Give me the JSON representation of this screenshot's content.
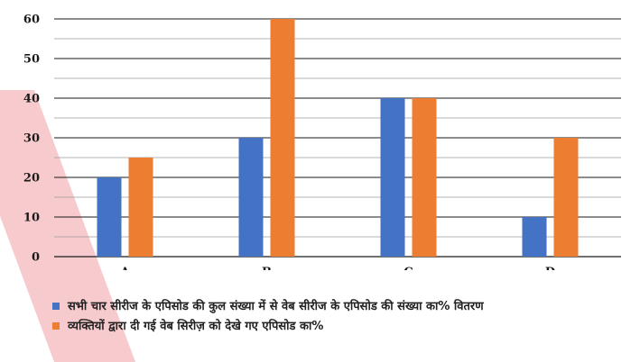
{
  "chart_data": {
    "type": "bar",
    "categories": [
      "A",
      "B",
      "C",
      "D"
    ],
    "series": [
      {
        "name": "सभी चार सीरीज के एपिसोड की कुल संख्या में से वेब सीरीज के एपिसोड की संख्या का% वितरण",
        "color": "#4472C4",
        "values": [
          20,
          30,
          40,
          10
        ]
      },
      {
        "name": "व्यक्तियों द्वारा दी गई वेब सिरीज़ को देखे गए एपिसोड का%",
        "color": "#ED7D31",
        "values": [
          25,
          60,
          40,
          30
        ]
      }
    ],
    "yticks": [
      0,
      10,
      20,
      30,
      40,
      50,
      60
    ],
    "ylim": [
      0,
      60
    ],
    "grid": true,
    "legend_position": "bottom-left"
  }
}
